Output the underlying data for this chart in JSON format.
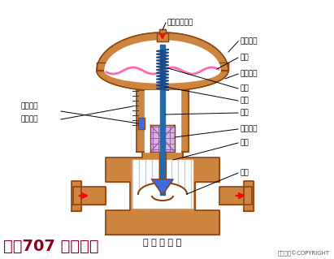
{
  "title": "气 动 薄 膜 阀",
  "subtitle": "化工707 剪辑制作",
  "copyright": "东方仿真©COPYRIGHT",
  "bg_color": "#ffffff",
  "body_color": "#cd853f",
  "body_edge_color": "#8b4513",
  "spring_color": "#1e6bb0",
  "diaphragm_color": "#ff69b4",
  "fill_color": "#b0c4de",
  "valve_plug_color": "#4169e1",
  "packing_color": "#d8b4e2",
  "indicator_color": "#4169e1",
  "labels": {
    "pressure_inlet": "压力信号入口",
    "upper_chamber": "膜室上腔",
    "diaphragm": "膜片",
    "lower_chamber": "膜室下腔",
    "spring": "弹簧",
    "push_rod": "推杆",
    "valve_stem": "阀杆",
    "packing": "密封填料",
    "valve_plug": "阀芯",
    "valve_seat": "阀座",
    "travel_indicator": "行程指针",
    "travel_scale": "行程刻度"
  }
}
